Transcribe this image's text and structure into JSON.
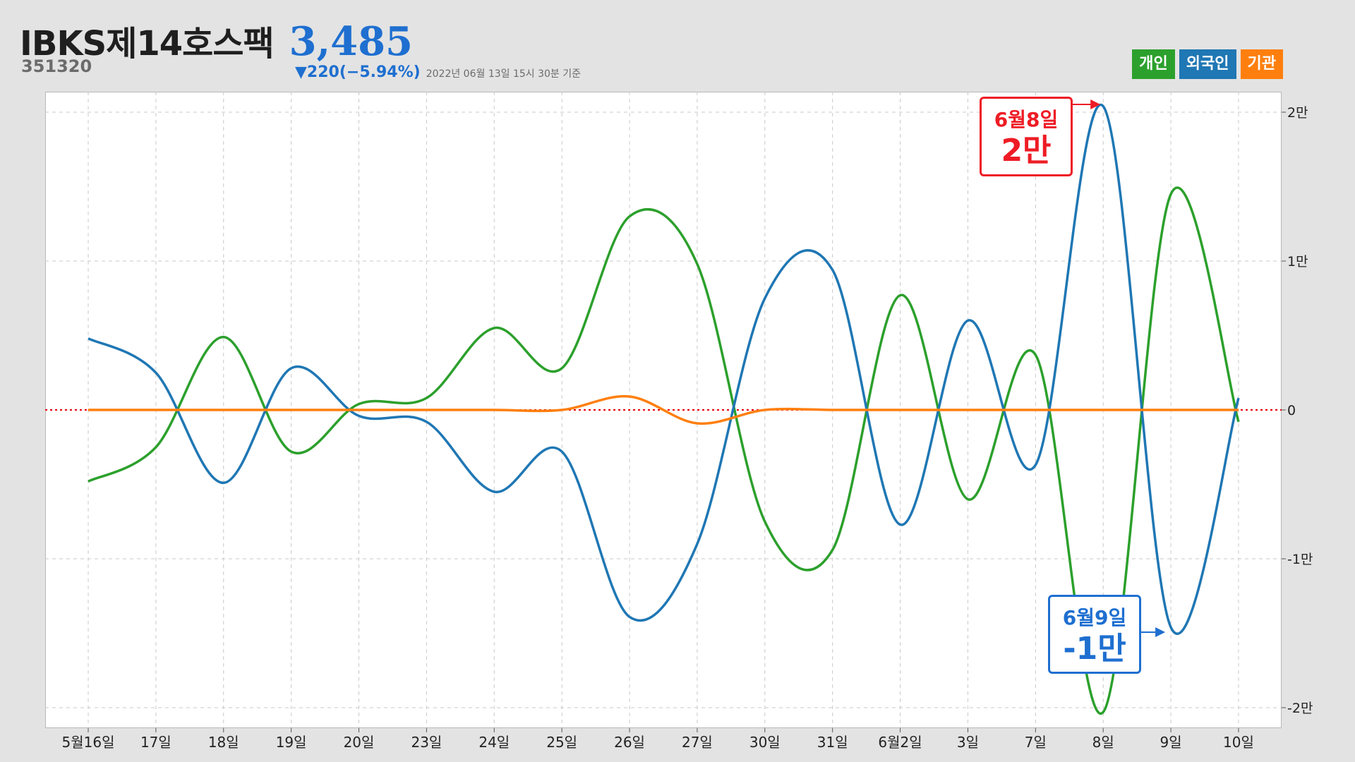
{
  "header": {
    "stock_name": "IBKS제14호스팩",
    "price": "3,485",
    "code": "351320",
    "change": "▼220(−5.94%)",
    "as_of": "2022년 06월 13일 15시 30분 기준"
  },
  "legend": [
    {
      "label": "개인",
      "color": "#2ca02c"
    },
    {
      "label": "외국인",
      "color": "#1f77b4"
    },
    {
      "label": "기관",
      "color": "#ff7f0e"
    }
  ],
  "callouts": {
    "red": {
      "date": "6월8일",
      "value": "2만",
      "color": "#ee1c25"
    },
    "blue": {
      "date": "6월9일",
      "value": "-1만",
      "color": "#1e6fd0"
    }
  },
  "chart_data": {
    "type": "line",
    "categories": [
      "5월16일",
      "17일",
      "18일",
      "19일",
      "20일",
      "23일",
      "24일",
      "25일",
      "26일",
      "27일",
      "30일",
      "31일",
      "6월2일",
      "3일",
      "7일",
      "8일",
      "9일",
      "10일"
    ],
    "yticks": [
      20000,
      10000,
      0,
      -10000,
      -20000
    ],
    "ytick_labels": [
      "2만",
      "1만",
      "0",
      "-1만",
      "-2만"
    ],
    "ylim": [
      -20500,
      20500
    ],
    "zero_line_color": "#e8000b",
    "series": [
      {
        "name": "개인",
        "color": "#2ca02c",
        "values": [
          -4800,
          -2500,
          4900,
          -2800,
          400,
          800,
          5500,
          2800,
          13000,
          9800,
          -7500,
          -9400,
          7700,
          -6000,
          3700,
          -20300,
          14500,
          -800
        ]
      },
      {
        "name": "외국인",
        "color": "#1f77b4",
        "values": [
          4800,
          2500,
          -4900,
          2800,
          -400,
          -800,
          -5500,
          -2800,
          -13900,
          -9000,
          7500,
          9400,
          -7700,
          6000,
          -3700,
          20400,
          -14600,
          800
        ]
      },
      {
        "name": "기관",
        "color": "#ff7f0e",
        "values": [
          0,
          0,
          0,
          0,
          0,
          0,
          0,
          0,
          900,
          -900,
          0,
          0,
          0,
          0,
          0,
          0,
          0,
          0
        ]
      }
    ]
  }
}
